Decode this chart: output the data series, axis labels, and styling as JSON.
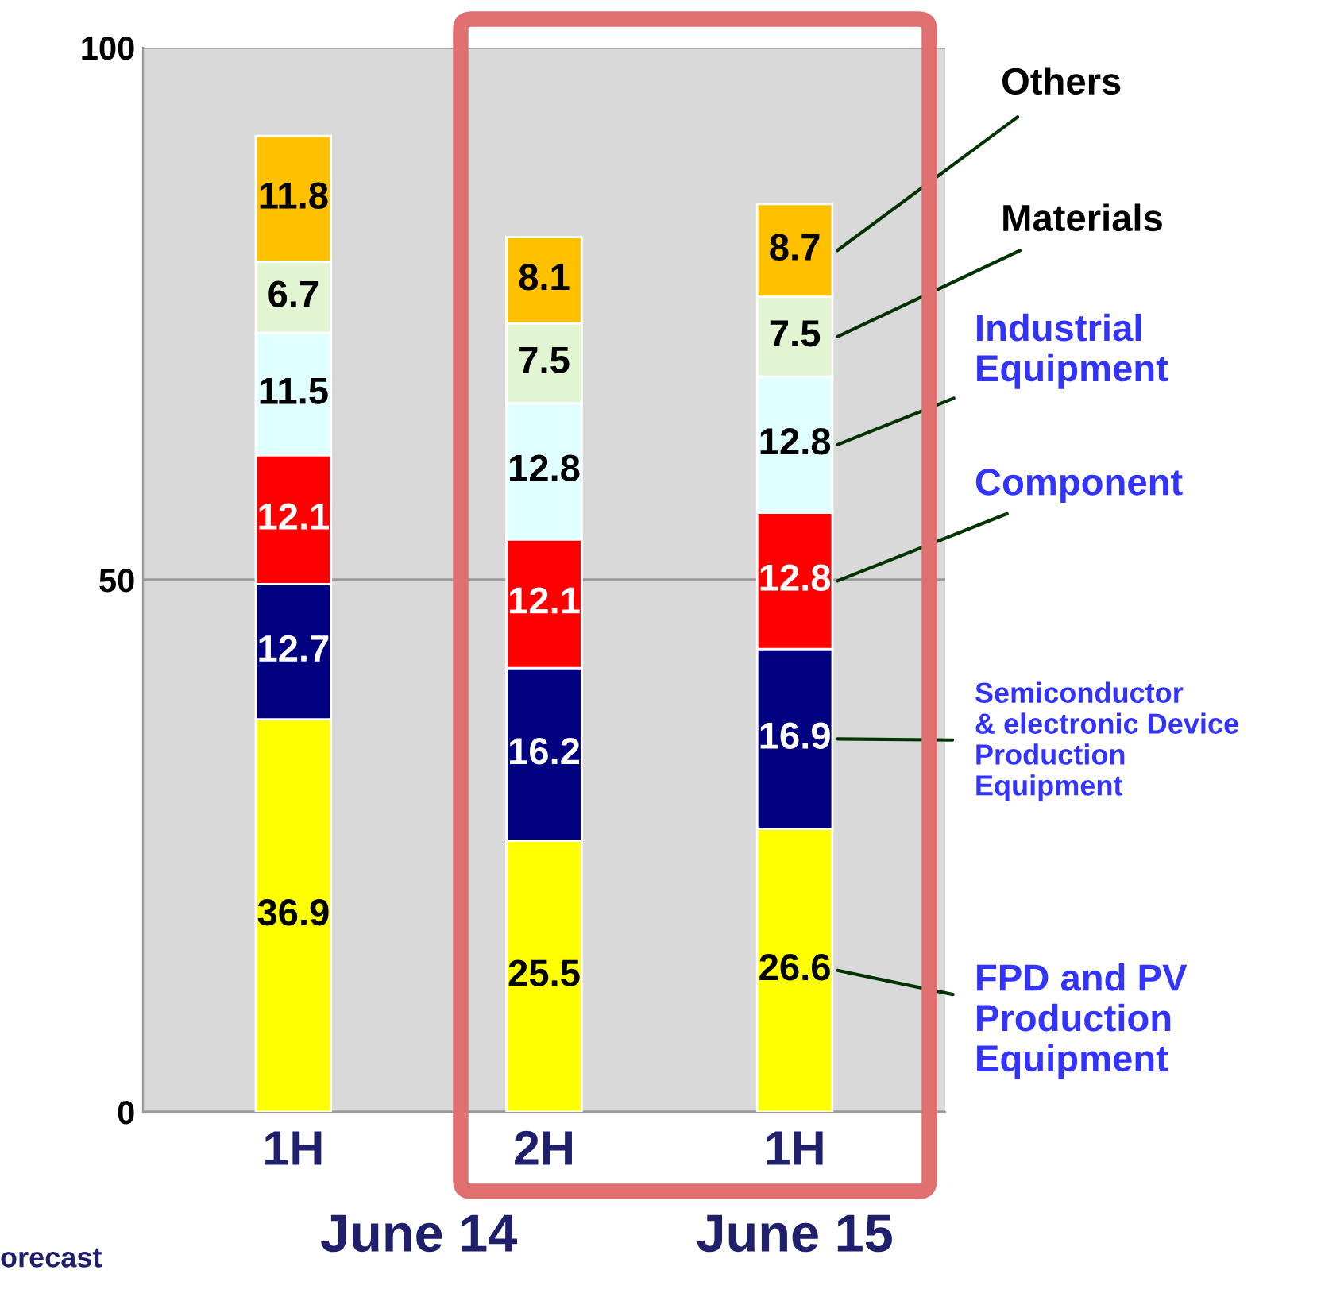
{
  "chart_data": {
    "type": "bar",
    "stacked": true,
    "categories": [
      "1H",
      "2H",
      "1H"
    ],
    "series": [
      {
        "name": "FPD and PV\nProduction\nEquipment",
        "color": "#ffff00",
        "values": [
          36.9,
          25.5,
          26.6
        ]
      },
      {
        "name": "Semiconductor\n& electronic Device\nProduction\nEquipment",
        "color": "#000080",
        "values": [
          12.7,
          16.2,
          16.9
        ]
      },
      {
        "name": "Component",
        "color": "#ff0000",
        "values": [
          12.1,
          12.1,
          12.8
        ]
      },
      {
        "name": "Industrial\nEquipment",
        "color": "#e0ffff",
        "values": [
          11.5,
          12.8,
          12.8
        ]
      },
      {
        "name": "Materials",
        "color": "#e2f5d2",
        "values": [
          6.7,
          7.5,
          7.5
        ]
      },
      {
        "name": "Others",
        "color": "#ffc000",
        "values": [
          11.8,
          8.1,
          8.7
        ]
      }
    ],
    "ylim": [
      0,
      100
    ],
    "yticks": [
      0,
      50,
      100
    ],
    "grid": "y",
    "data_labels": true,
    "annotations": [
      "June 14",
      "June 15",
      "orecast"
    ]
  }
}
